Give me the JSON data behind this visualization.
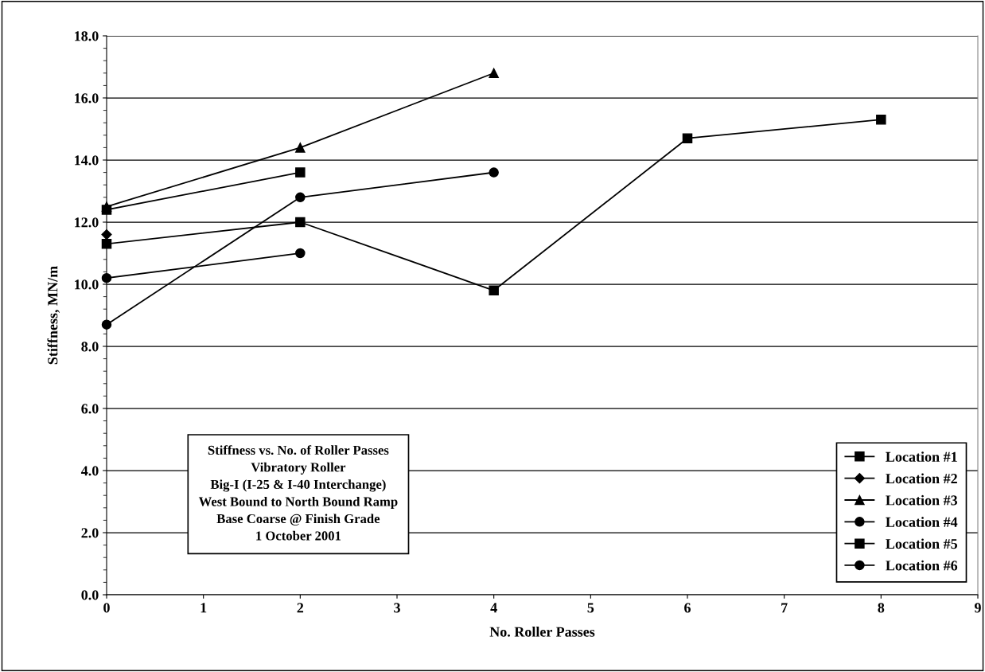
{
  "chart_data": {
    "type": "line",
    "xlabel": "No. Roller Passes",
    "ylabel": "Stiffness, MN/m",
    "annotations": [
      "Stiffness vs. No. of Roller Passes",
      "Vibratory Roller",
      "Big-I (I-25 & I-40 Interchange)",
      "West Bound to North Bound Ramp",
      "Base Coarse @ Finish Grade",
      "1 October 2001"
    ],
    "series": [
      {
        "name": "Location #1",
        "color": "#000000",
        "marker": "square",
        "x": [
          0,
          2,
          4,
          6,
          8
        ],
        "values": [
          11.3,
          12.0,
          9.8,
          14.7,
          15.3
        ]
      },
      {
        "name": "Location #2",
        "color": "#000000",
        "marker": "diamond",
        "x": [
          0
        ],
        "values": [
          11.6
        ]
      },
      {
        "name": "Location #3",
        "color": "#000000",
        "marker": "triangle",
        "x": [
          0,
          2,
          4
        ],
        "values": [
          12.5,
          14.4,
          16.8
        ]
      },
      {
        "name": "Location #4",
        "color": "#000000",
        "marker": "circle",
        "x": [
          0,
          2,
          4
        ],
        "values": [
          8.7,
          12.8,
          13.6
        ]
      },
      {
        "name": "Location #5",
        "color": "#000000",
        "marker": "square",
        "x": [
          0,
          2
        ],
        "values": [
          12.4,
          13.6
        ]
      },
      {
        "name": "Location #6",
        "color": "#000000",
        "marker": "circle",
        "x": [
          0,
          2
        ],
        "values": [
          10.2,
          11.0
        ]
      }
    ],
    "xlim": [
      0,
      9
    ],
    "xticks": [
      0,
      1,
      2,
      3,
      4,
      5,
      6,
      7,
      8,
      9
    ],
    "ylim": [
      0,
      18
    ],
    "yticks": [
      {
        "value": 0,
        "label": "0.0"
      },
      {
        "value": 2,
        "label": "2.0"
      },
      {
        "value": 4,
        "label": "4.0"
      },
      {
        "value": 6,
        "label": "6.0"
      },
      {
        "value": 8,
        "label": "8.0"
      },
      {
        "value": 10,
        "label": "10.0"
      },
      {
        "value": 12,
        "label": "12.0"
      },
      {
        "value": 14,
        "label": "14.0"
      },
      {
        "value": 16,
        "label": "16.0"
      },
      {
        "value": 18,
        "label": "18.0"
      }
    ],
    "grid": "y",
    "legend": "bottom right",
    "line_style": "solid"
  }
}
